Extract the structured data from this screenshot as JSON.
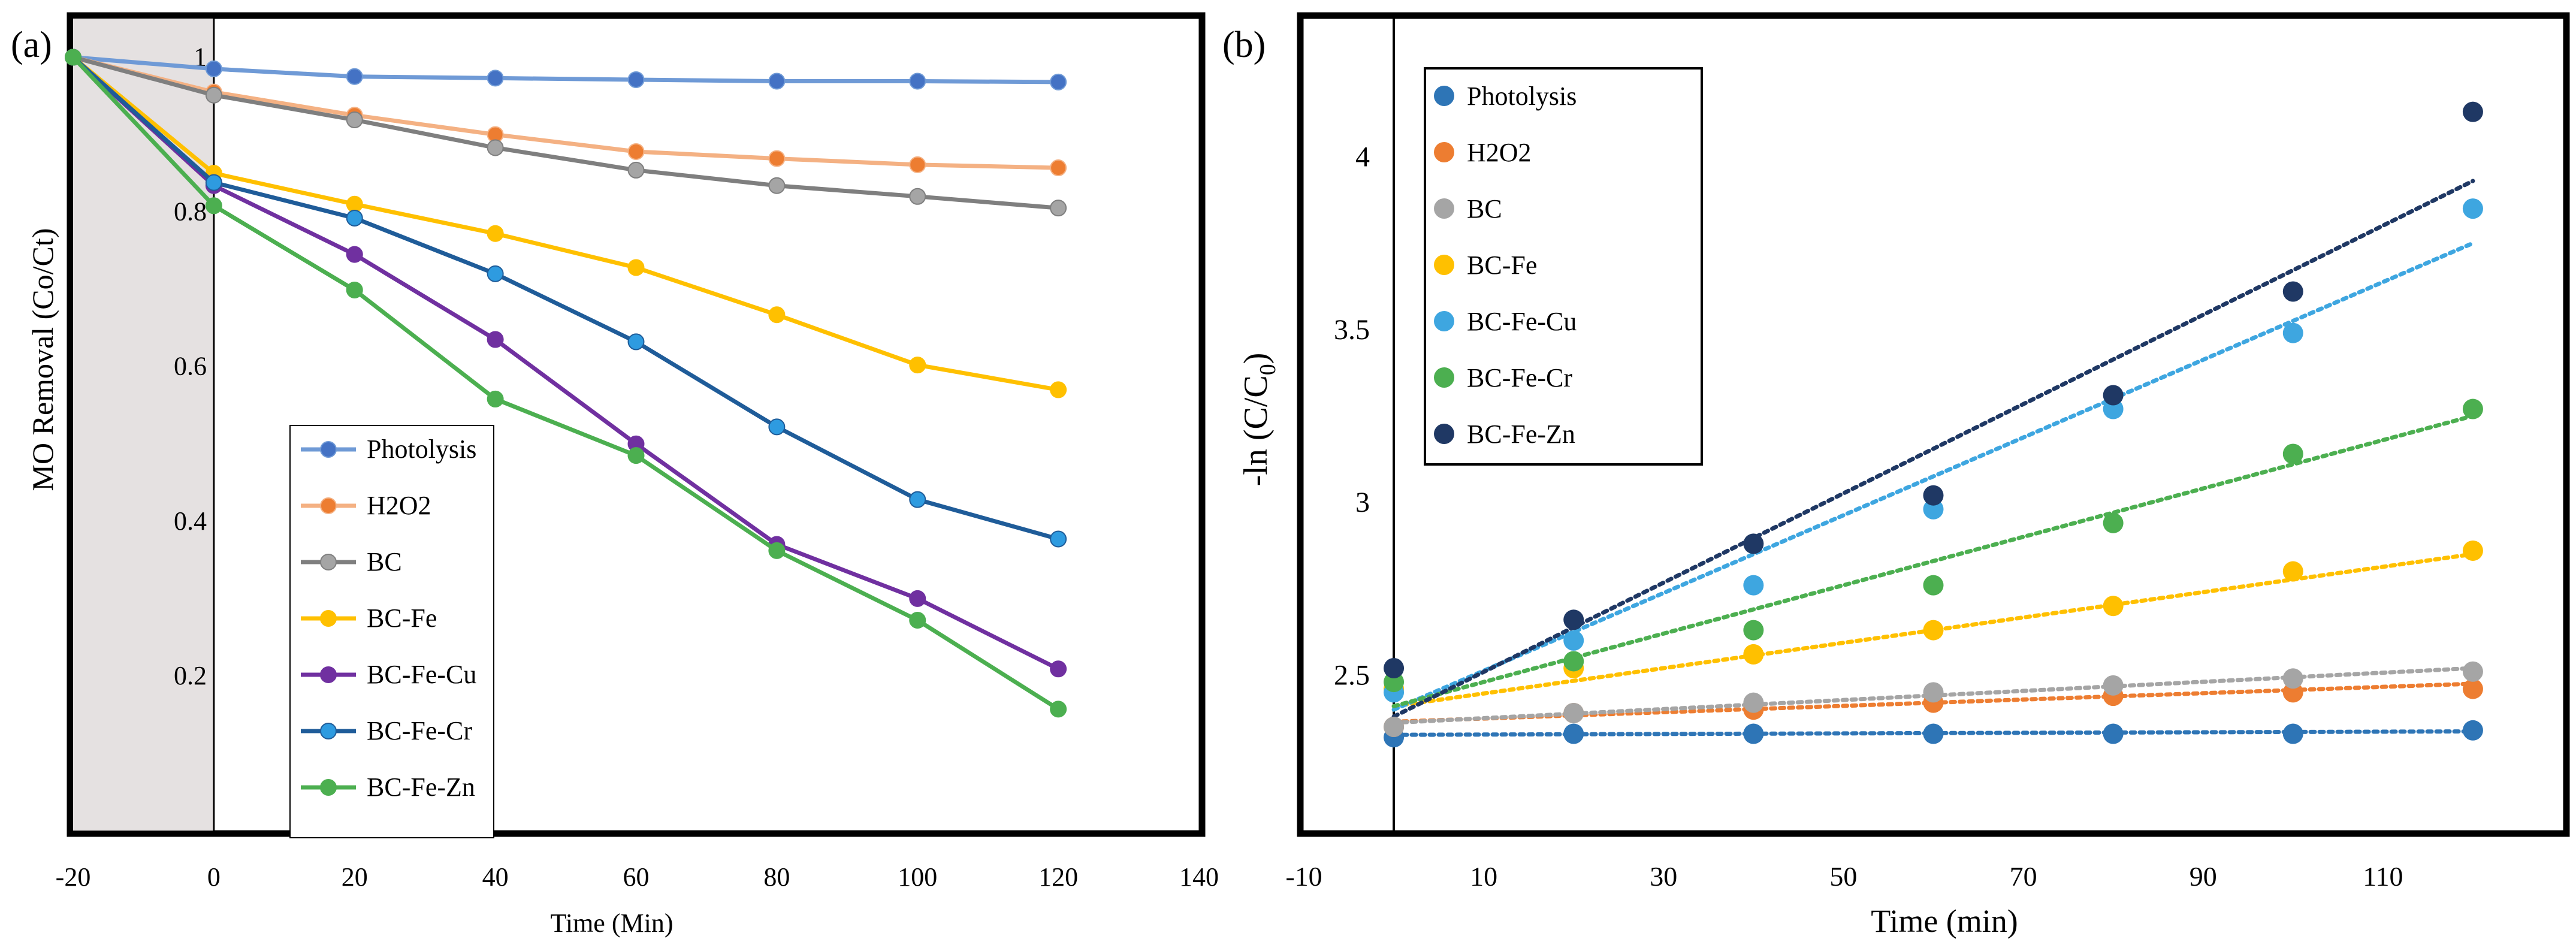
{
  "chart_data": [
    {
      "type": "line",
      "panel_label": "(a)",
      "xlabel": "Time (Min)",
      "ylabel": "MO Removal (Co/Ct)",
      "xlim": [
        -20,
        140
      ],
      "ylim": [
        0,
        1.05
      ],
      "x_ticks": [
        "-20",
        "0",
        "20",
        "40",
        "60",
        "80",
        "100",
        "120",
        "140"
      ],
      "y_ticks": [
        "1",
        "0.8",
        "0.6",
        "0.4",
        "0.2"
      ],
      "dark_region": [
        -20,
        0
      ],
      "legend_position": "center-left",
      "x": [
        -20,
        0,
        20,
        40,
        60,
        80,
        100,
        120
      ],
      "series": [
        {
          "name": "Photolysis",
          "color": "#6f9ad6",
          "marker": "#4472c4",
          "values": [
            1.0,
            0.985,
            0.975,
            0.973,
            0.971,
            0.969,
            0.969,
            0.968
          ]
        },
        {
          "name": "H2O2",
          "color": "#f4b183",
          "marker": "#ed7d31",
          "values": [
            1.0,
            0.955,
            0.925,
            0.9,
            0.878,
            0.869,
            0.861,
            0.857
          ]
        },
        {
          "name": "BC",
          "color": "#7f7f7f",
          "marker": "#a5a5a5",
          "values": [
            1.0,
            0.951,
            0.919,
            0.883,
            0.854,
            0.834,
            0.82,
            0.805
          ]
        },
        {
          "name": "BC-Fe",
          "color": "#ffc000",
          "marker": "#ffc000",
          "values": [
            1.0,
            0.85,
            0.81,
            0.772,
            0.728,
            0.667,
            0.602,
            0.57
          ]
        },
        {
          "name": "BC-Fe-Cu",
          "color": "#7030a0",
          "marker": "#7030a0",
          "values": [
            1.0,
            0.834,
            0.745,
            0.635,
            0.5,
            0.37,
            0.3,
            0.209
          ]
        },
        {
          "name": "BC-Fe-Cr",
          "color": "#1f5c99",
          "marker": "#2e9be0",
          "values": [
            1.0,
            0.838,
            0.792,
            0.72,
            0.632,
            0.522,
            0.428,
            0.377
          ]
        },
        {
          "name": "BC-Fe-Zn",
          "color": "#4caf50",
          "marker": "#4caf50",
          "values": [
            1.0,
            0.808,
            0.699,
            0.558,
            0.485,
            0.362,
            0.272,
            0.157
          ]
        }
      ]
    },
    {
      "type": "scatter",
      "panel_label": "(b)",
      "xlabel": "Time (min)",
      "ylabel": "-ln (C/C",
      "ylabel_sub": "0",
      "ylabel_end": ")",
      "xlim": [
        -10,
        130
      ],
      "ylim": [
        2.05,
        4.4
      ],
      "x_ticks": [
        "-10",
        "10",
        "30",
        "50",
        "70",
        "90",
        "110"
      ],
      "y_ticks": [
        "4",
        "3.5",
        "3",
        "2.5"
      ],
      "trendline": "linear (dotted)",
      "legend_position": "top-left",
      "x": [
        0,
        20,
        40,
        60,
        80,
        100,
        120
      ],
      "series": [
        {
          "name": "Photolysis",
          "color": "#2e75b6",
          "values": [
            2.32,
            2.33,
            2.33,
            2.33,
            2.33,
            2.33,
            2.34
          ],
          "fit": [
            2.327,
            2.337
          ]
        },
        {
          "name": "H2O2",
          "color": "#ed7d31",
          "values": [
            2.35,
            2.39,
            2.4,
            2.42,
            2.44,
            2.45,
            2.46
          ],
          "fit": [
            2.365,
            2.475
          ]
        },
        {
          "name": "BC",
          "color": "#a5a5a5",
          "values": [
            2.35,
            2.39,
            2.42,
            2.45,
            2.47,
            2.49,
            2.51
          ],
          "fit": [
            2.362,
            2.52
          ]
        },
        {
          "name": "BC-Fe",
          "color": "#ffc000",
          "values": [
            2.46,
            2.52,
            2.56,
            2.63,
            2.7,
            2.8,
            2.86
          ],
          "fit": [
            2.41,
            2.85
          ]
        },
        {
          "name": "BC-Fe-Cu",
          "color": "#3ea6e0",
          "values": [
            2.45,
            2.6,
            2.76,
            2.98,
            3.27,
            3.49,
            3.85
          ],
          "fit": [
            2.4,
            3.75
          ]
        },
        {
          "name": "BC-Fe-Cr",
          "color": "#4caf50",
          "values": [
            2.48,
            2.54,
            2.63,
            2.76,
            2.94,
            3.14,
            3.27
          ],
          "fit": [
            2.41,
            3.25
          ]
        },
        {
          "name": "BC-Fe-Zn",
          "color": "#1f3864",
          "values": [
            2.52,
            2.66,
            2.88,
            3.02,
            3.31,
            3.61,
            4.13
          ],
          "fit": [
            2.38,
            3.93
          ]
        }
      ]
    }
  ]
}
